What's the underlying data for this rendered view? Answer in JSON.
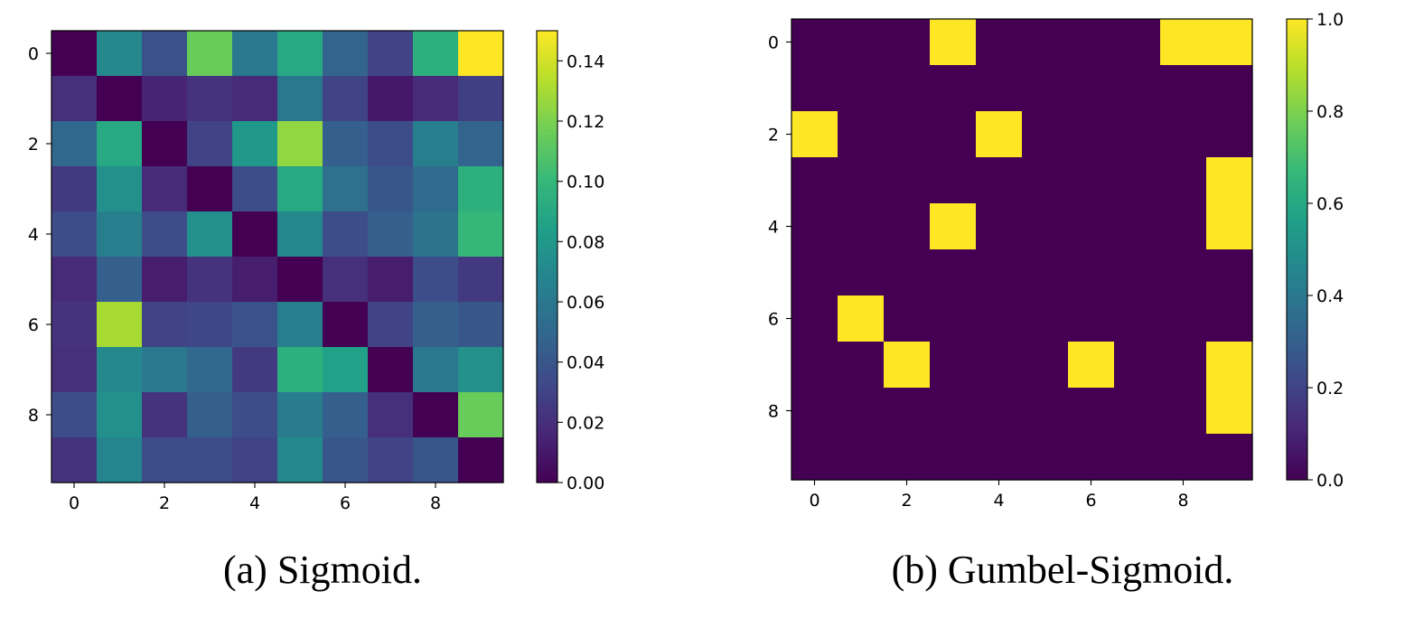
{
  "chart_data": [
    {
      "type": "heatmap",
      "caption": "(a) Sigmoid.",
      "x_ticks": [
        "0",
        "2",
        "4",
        "6",
        "8"
      ],
      "y_ticks": [
        "0",
        "2",
        "4",
        "6",
        "8"
      ],
      "colorbar": {
        "min": 0.0,
        "max": 0.15,
        "ticks": [
          "0.00",
          "0.02",
          "0.04",
          "0.06",
          "0.08",
          "0.10",
          "0.12",
          "0.14"
        ],
        "tick_values": [
          0.0,
          0.02,
          0.04,
          0.06,
          0.08,
          0.1,
          0.12,
          0.14
        ]
      },
      "colormap": "viridis",
      "values": [
        [
          0.0,
          0.07,
          0.038,
          0.115,
          0.06,
          0.09,
          0.048,
          0.03,
          0.095,
          0.15
        ],
        [
          0.02,
          0.0,
          0.015,
          0.022,
          0.018,
          0.06,
          0.03,
          0.01,
          0.018,
          0.028
        ],
        [
          0.05,
          0.09,
          0.0,
          0.03,
          0.08,
          0.125,
          0.045,
          0.035,
          0.065,
          0.048
        ],
        [
          0.025,
          0.075,
          0.018,
          0.0,
          0.035,
          0.09,
          0.055,
          0.04,
          0.052,
          0.095
        ],
        [
          0.035,
          0.065,
          0.035,
          0.075,
          0.0,
          0.07,
          0.035,
          0.045,
          0.058,
          0.1
        ],
        [
          0.018,
          0.045,
          0.012,
          0.022,
          0.012,
          0.0,
          0.02,
          0.012,
          0.035,
          0.025
        ],
        [
          0.022,
          0.13,
          0.03,
          0.032,
          0.038,
          0.065,
          0.0,
          0.03,
          0.045,
          0.04
        ],
        [
          0.02,
          0.07,
          0.06,
          0.05,
          0.025,
          0.095,
          0.085,
          0.0,
          0.06,
          0.075
        ],
        [
          0.035,
          0.075,
          0.022,
          0.045,
          0.035,
          0.062,
          0.045,
          0.02,
          0.0,
          0.115
        ],
        [
          0.022,
          0.068,
          0.035,
          0.035,
          0.03,
          0.07,
          0.04,
          0.03,
          0.04,
          0.0
        ]
      ]
    },
    {
      "type": "heatmap",
      "caption": "(b) Gumbel-Sigmoid.",
      "x_ticks": [
        "0",
        "2",
        "4",
        "6",
        "8"
      ],
      "y_ticks": [
        "0",
        "2",
        "4",
        "6",
        "8"
      ],
      "colorbar": {
        "min": 0.0,
        "max": 1.0,
        "ticks": [
          "0.0",
          "0.2",
          "0.4",
          "0.6",
          "0.8",
          "1.0"
        ],
        "tick_values": [
          0.0,
          0.2,
          0.4,
          0.6,
          0.8,
          1.0
        ]
      },
      "colormap": "viridis",
      "values": [
        [
          0,
          0,
          0,
          1,
          0,
          0,
          0,
          0,
          1,
          1
        ],
        [
          0,
          0,
          0,
          0,
          0,
          0,
          0,
          0,
          0,
          0
        ],
        [
          1,
          0,
          0,
          0,
          1,
          0,
          0,
          0,
          0,
          0
        ],
        [
          0,
          0,
          0,
          0,
          0,
          0,
          0,
          0,
          0,
          1
        ],
        [
          0,
          0,
          0,
          1,
          0,
          0,
          0,
          0,
          0,
          1
        ],
        [
          0,
          0,
          0,
          0,
          0,
          0,
          0,
          0,
          0,
          0
        ],
        [
          0,
          1,
          0,
          0,
          0,
          0,
          0,
          0,
          0,
          0
        ],
        [
          0,
          0,
          1,
          0,
          0,
          0,
          1,
          0,
          0,
          1
        ],
        [
          0,
          0,
          0,
          0,
          0,
          0,
          0,
          0,
          0,
          1
        ],
        [
          0,
          0,
          0,
          0,
          0,
          0,
          0,
          0,
          0,
          0
        ]
      ]
    }
  ]
}
